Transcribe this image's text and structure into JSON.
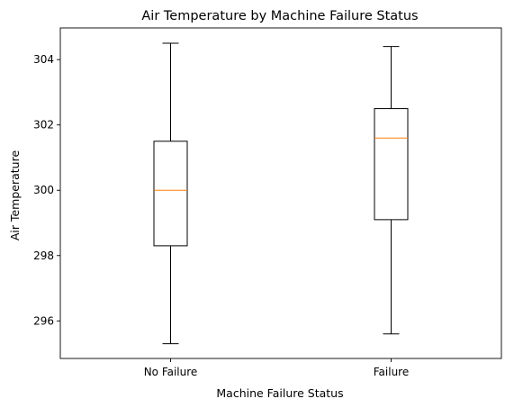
{
  "chart_data": {
    "type": "box",
    "title": "Air Temperature by Machine Failure Status",
    "xlabel": "Machine Failure Status",
    "ylabel": "Air Temperature",
    "categories": [
      "No Failure",
      "Failure"
    ],
    "boxes": [
      {
        "category": "No Failure",
        "whisker_low": 295.3,
        "q1": 298.3,
        "median": 300.0,
        "q3": 301.5,
        "whisker_high": 304.5
      },
      {
        "category": "Failure",
        "whisker_low": 295.6,
        "q1": 299.1,
        "median": 301.6,
        "q3": 302.5,
        "whisker_high": 304.4
      }
    ],
    "ylim": [
      294.85,
      304.97
    ],
    "yticks": [
      296,
      298,
      300,
      302,
      304
    ],
    "ytick_labels": [
      "296",
      "298",
      "300",
      "302",
      "304"
    ],
    "grid": false,
    "colors": {
      "box": "#000000",
      "median": "#ff7f0e",
      "background": "#ffffff"
    }
  }
}
